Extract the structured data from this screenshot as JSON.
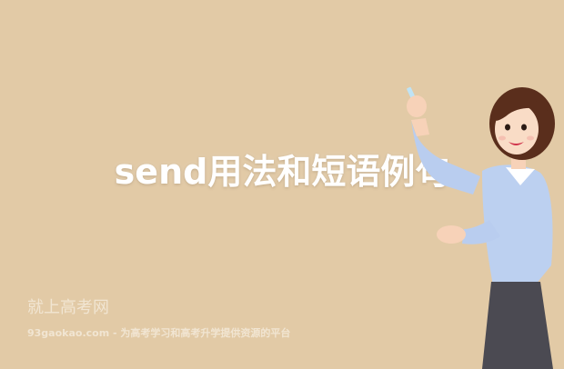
{
  "banner": {
    "title": "send用法和短语例句",
    "brand": "就上高考网",
    "tagline": "93gaokao.com - 为高考学习和高考升学提供资源的平台",
    "background_color": "#e2caa6"
  },
  "illustration": {
    "icon": "teacher-illustration"
  }
}
